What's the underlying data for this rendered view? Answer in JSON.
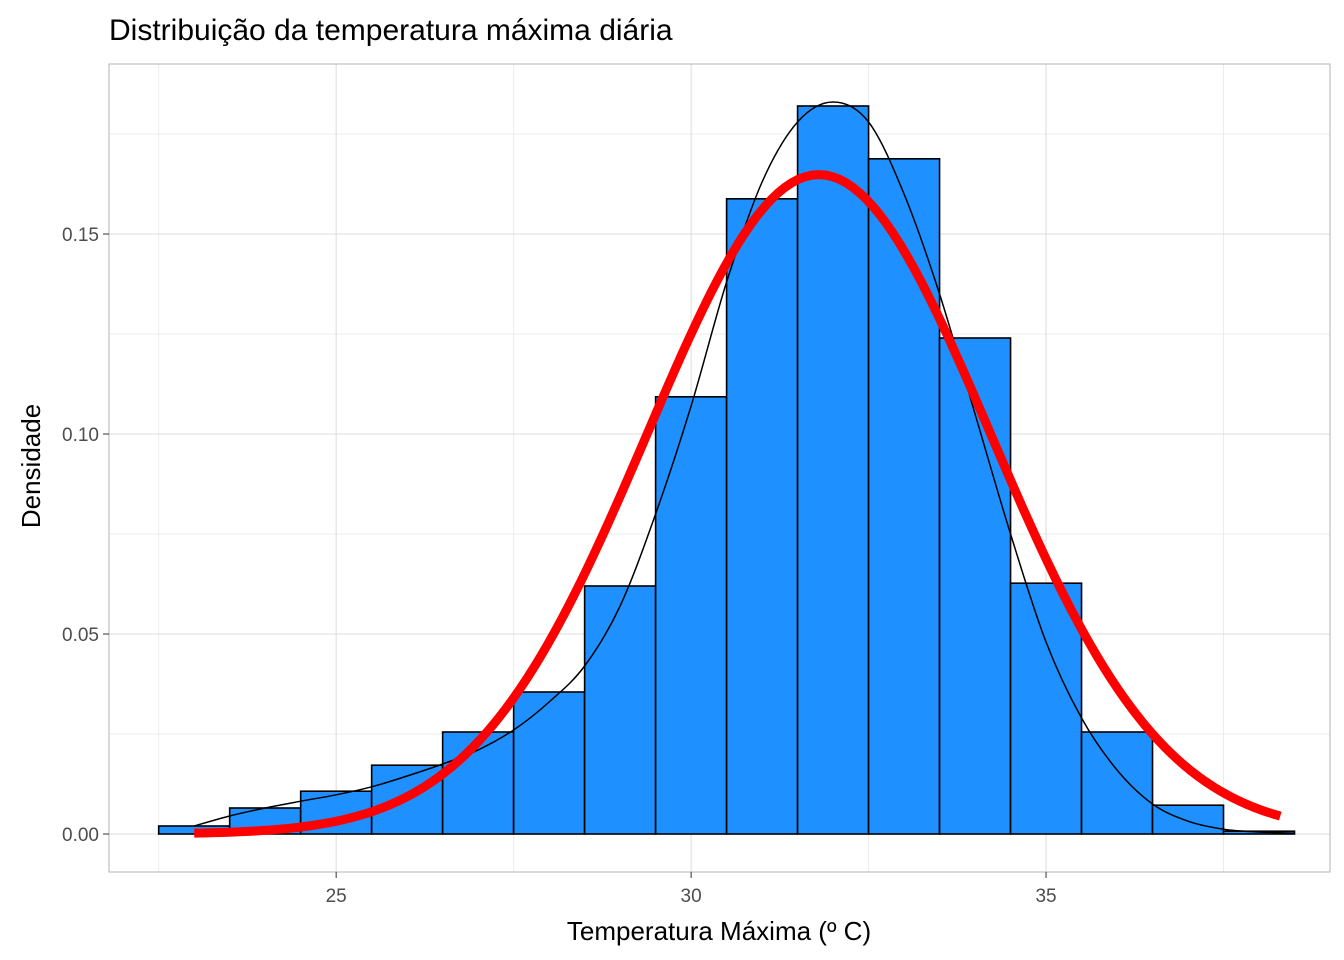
{
  "chart_data": {
    "type": "bar",
    "title": "Distribuição da temperatura máxima diária",
    "xlabel": "Temperatura Máxima (º C)",
    "ylabel": "Densidade",
    "xlim": [
      21.8,
      39.0
    ],
    "ylim": [
      -0.0095,
      0.1925
    ],
    "x_ticks": [
      25,
      30,
      35
    ],
    "x_tick_labels": [
      "25",
      "30",
      "35"
    ],
    "y_ticks": [
      0.0,
      0.05,
      0.1,
      0.15
    ],
    "y_tick_labels": [
      "0.00",
      "0.05",
      "0.10",
      "0.15"
    ],
    "grid": true,
    "bin_width": 1,
    "bins": [
      {
        "x": 23,
        "density": 0.002
      },
      {
        "x": 24,
        "density": 0.0065
      },
      {
        "x": 25,
        "density": 0.0107
      },
      {
        "x": 26,
        "density": 0.0172
      },
      {
        "x": 27,
        "density": 0.0255
      },
      {
        "x": 28,
        "density": 0.0355
      },
      {
        "x": 29,
        "density": 0.062
      },
      {
        "x": 30,
        "density": 0.1093
      },
      {
        "x": 31,
        "density": 0.1588
      },
      {
        "x": 32,
        "density": 0.182
      },
      {
        "x": 33,
        "density": 0.1688
      },
      {
        "x": 34,
        "density": 0.124
      },
      {
        "x": 35,
        "density": 0.0627
      },
      {
        "x": 36,
        "density": 0.0255
      },
      {
        "x": 37,
        "density": 0.0072
      },
      {
        "x": 38,
        "density": 0.0007
      }
    ],
    "bar_fill": "#1e90ff",
    "bar_outline": "#000000",
    "series": [
      {
        "type": "kernel-density",
        "color": "#000000",
        "x": [
          23.0,
          23.5,
          24.0,
          24.5,
          25.0,
          25.5,
          26.0,
          26.5,
          27.0,
          27.5,
          28.0,
          28.5,
          29.0,
          29.5,
          30.0,
          30.5,
          31.0,
          31.5,
          32.0,
          32.5,
          33.0,
          33.5,
          34.0,
          34.5,
          35.0,
          35.5,
          36.0,
          36.5,
          37.0,
          37.5,
          38.0,
          38.5
        ],
        "y": [
          0.002,
          0.0045,
          0.0065,
          0.0082,
          0.0098,
          0.0118,
          0.0145,
          0.0175,
          0.021,
          0.026,
          0.033,
          0.042,
          0.057,
          0.08,
          0.107,
          0.138,
          0.163,
          0.178,
          0.183,
          0.178,
          0.16,
          0.135,
          0.105,
          0.075,
          0.048,
          0.029,
          0.016,
          0.0075,
          0.0032,
          0.0012,
          0.0005,
          0.0002
        ]
      },
      {
        "type": "normal-fit",
        "color": "#ff0000",
        "mean": 31.8,
        "sd": 2.42,
        "x_range": [
          23.0,
          38.3
        ]
      }
    ]
  }
}
